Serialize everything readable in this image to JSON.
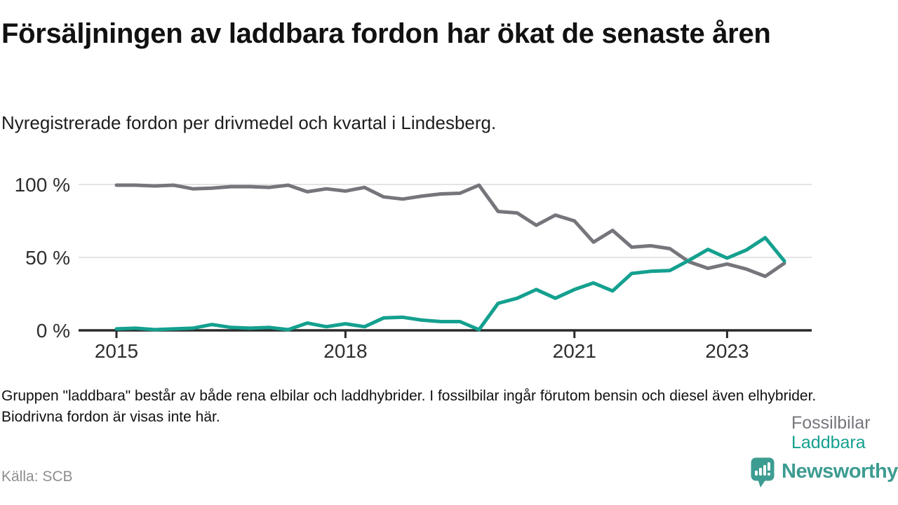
{
  "header": {
    "title": "Försäljningen av laddbara fordon har ökat de senaste åren",
    "subtitle": "Nyregistrerade fordon per drivmedel och kvartal i Lindesberg."
  },
  "chart_data": {
    "type": "line",
    "x_unit": "quarter",
    "x_range": [
      "2015 Q1",
      "2023 Q4"
    ],
    "points_per_year": 4,
    "x_start_year": 2015,
    "ylim": [
      0,
      100
    ],
    "grid": "horizontal",
    "legend_position": "right-of-line-ends",
    "x_ticks": [
      {
        "value": 2015,
        "label": "2015"
      },
      {
        "value": 2018,
        "label": "2018"
      },
      {
        "value": 2021,
        "label": "2021"
      },
      {
        "value": 2023,
        "label": "2023"
      }
    ],
    "y_ticks": [
      {
        "value": 100,
        "label": "100 %"
      },
      {
        "value": 50,
        "label": "50 %"
      },
      {
        "value": 0,
        "label": "0 %"
      }
    ],
    "series": [
      {
        "name": "Fossilbilar",
        "color": "#77757c",
        "values": [
          99.5,
          99.5,
          99,
          99.5,
          97,
          97.5,
          98.5,
          98.5,
          98,
          99.5,
          95,
          97,
          95.5,
          98,
          91.5,
          90,
          92,
          93.5,
          94,
          99.5,
          81.5,
          80.5,
          72,
          79,
          75,
          60.5,
          68.5,
          57,
          58,
          56,
          47,
          42.5,
          45.5,
          42,
          37,
          46
        ]
      },
      {
        "name": "Laddbara",
        "color": "#14a08f",
        "values": [
          1,
          1.5,
          0.5,
          1,
          1.5,
          4,
          2,
          1.5,
          2,
          0.5,
          5,
          2.5,
          4.5,
          2.5,
          8.5,
          9,
          7,
          6,
          6,
          0.5,
          18.5,
          22,
          28,
          22,
          28,
          32.5,
          27,
          39,
          40.5,
          41,
          48,
          55.5,
          49.5,
          55,
          63.5,
          47.5
        ]
      }
    ]
  },
  "footnote": "Gruppen \"laddbara\" består av både rena elbilar och laddhybrider. I fossilbilar ingår förutom bensin och diesel även elhybrider. Biodrivna fordon är visas inte här.",
  "source": "Källa: SCB",
  "branding": {
    "name": "Newsworthy",
    "logo_icon": "bar-chart-exclamation-pin",
    "brand_color": "#3d9c91"
  },
  "colors": {
    "background": "#ffffff",
    "title_text": "#111111",
    "axis_line": "#2a2a2a",
    "axis_label": "#2e2e2e",
    "gridline": "#dcdcdc",
    "fossil_line": "#77757c",
    "laddbara_line": "#14a08f",
    "source_text": "#8e8e8e"
  }
}
